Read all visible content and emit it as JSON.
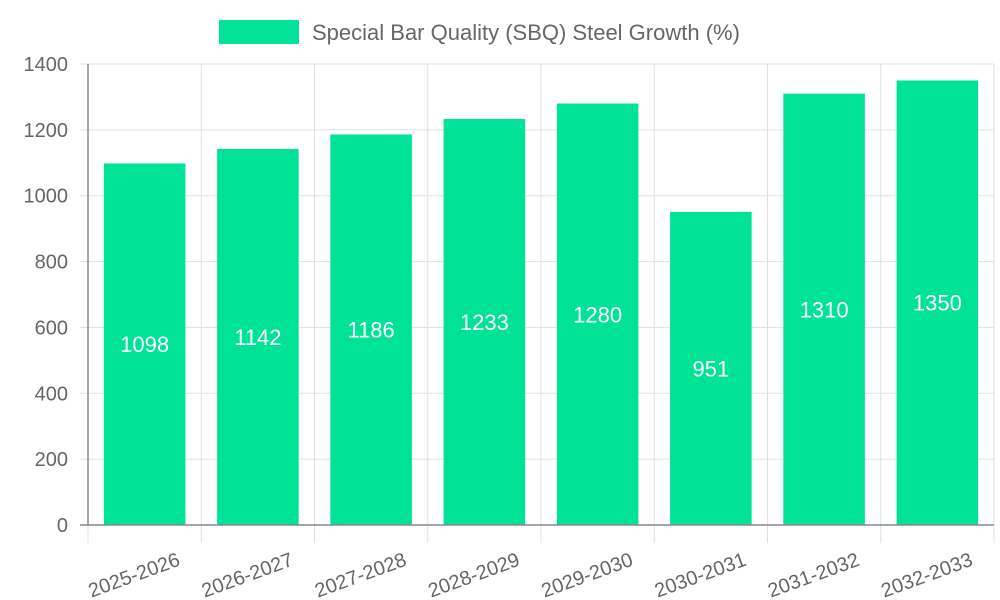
{
  "chart_data": {
    "type": "bar",
    "title": "",
    "xlabel": "",
    "ylabel": "",
    "categories": [
      "2025-2026",
      "2026-2027",
      "2027-2028",
      "2028-2029",
      "2029-2030",
      "2030-2031",
      "2031-2032",
      "2032-2033"
    ],
    "series": [
      {
        "name": "Special Bar Quality (SBQ) Steel Growth (%)",
        "values": [
          1098,
          1142,
          1186,
          1233,
          1280,
          951,
          1310,
          1350
        ],
        "color": "#00e396"
      }
    ],
    "ylim": [
      0,
      1400
    ],
    "yticks": [
      0,
      200,
      400,
      600,
      800,
      1000,
      1200,
      1400
    ],
    "grid": true,
    "legend_position": "top-center",
    "data_labels": true
  },
  "colors": {
    "bar": "#00e396",
    "grid": "#e0e0e0",
    "axis": "#888888",
    "text": "#666666",
    "label": "#ffffff"
  }
}
